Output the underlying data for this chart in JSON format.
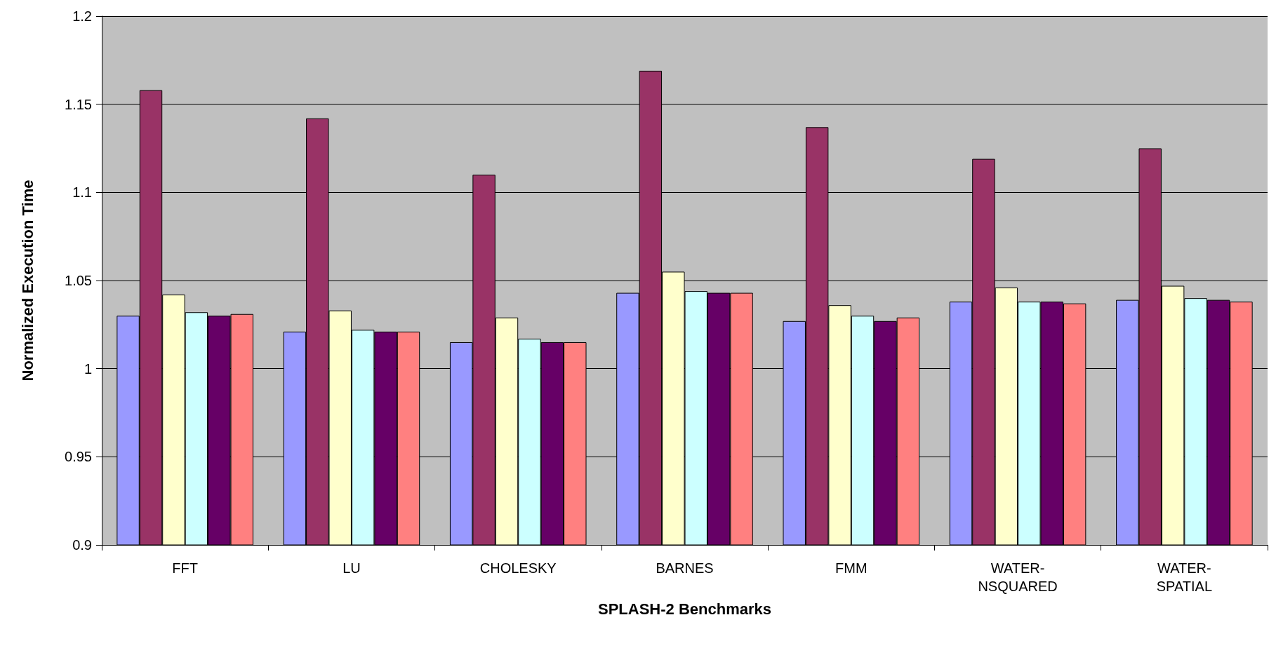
{
  "chart_data": {
    "type": "bar",
    "xlabel": "SPLASH-2 Benchmarks",
    "ylabel": "Normalized Execution Time",
    "categories": [
      "FFT",
      "LU",
      "CHOLESKY",
      "BARNES",
      "FMM",
      "WATER-NSQUARED",
      "WATER-SPATIAL"
    ],
    "series": [
      {
        "color": "#9999ff",
        "values": [
          1.03,
          1.021,
          1.015,
          1.043,
          1.027,
          1.038,
          1.039
        ]
      },
      {
        "color": "#993366",
        "values": [
          1.158,
          1.142,
          1.11,
          1.169,
          1.137,
          1.119,
          1.125
        ]
      },
      {
        "color": "#ffffcc",
        "values": [
          1.042,
          1.033,
          1.029,
          1.055,
          1.036,
          1.046,
          1.047
        ]
      },
      {
        "color": "#ccffff",
        "values": [
          1.032,
          1.022,
          1.017,
          1.044,
          1.03,
          1.038,
          1.04
        ]
      },
      {
        "color": "#660066",
        "values": [
          1.03,
          1.021,
          1.015,
          1.043,
          1.027,
          1.038,
          1.039
        ]
      },
      {
        "color": "#ff8080",
        "values": [
          1.031,
          1.021,
          1.015,
          1.043,
          1.029,
          1.037,
          1.038
        ]
      }
    ],
    "ylim": [
      0.9,
      1.2
    ],
    "yticks": [
      0.9,
      0.95,
      1,
      1.05,
      1.1,
      1.15,
      1.2
    ],
    "grid": "y"
  }
}
